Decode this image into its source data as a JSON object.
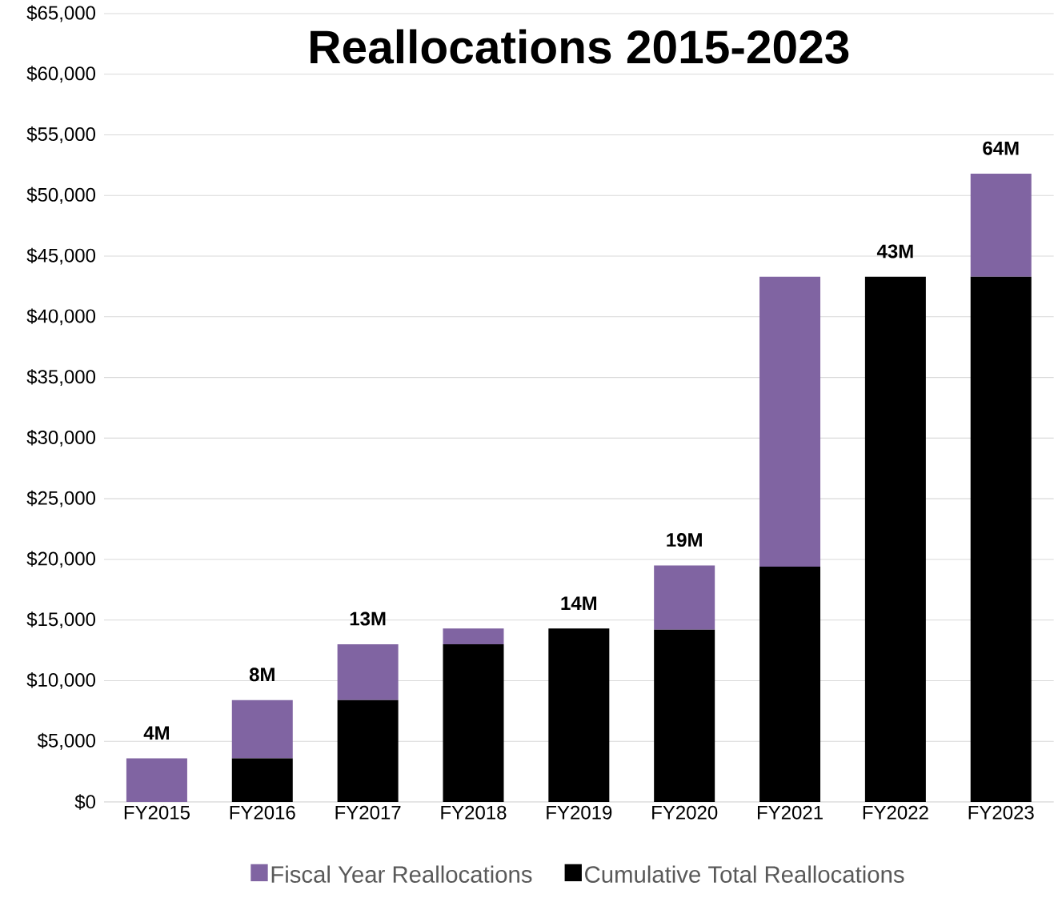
{
  "chart_data": {
    "type": "bar",
    "title": "Reallocations 2015-2023",
    "categories": [
      "FY2015",
      "FY2016",
      "FY2017",
      "FY2018",
      "FY2019",
      "FY2020",
      "FY2021",
      "FY2022",
      "FY2023"
    ],
    "series": [
      {
        "name": "Cumulative Total Reallocations",
        "color": "#000000",
        "values": [
          0,
          3600,
          8400,
          13000,
          14300,
          14200,
          19400,
          43300,
          43300
        ]
      },
      {
        "name": "Fiscal Year Reallocations",
        "color": "#8064a2",
        "values": [
          3600,
          4800,
          4600,
          1300,
          0,
          5300,
          23900,
          0,
          8500
        ]
      }
    ],
    "stacked": true,
    "ylim": [
      0,
      65000
    ],
    "yticks": [
      {
        "value": 0,
        "label": "$0"
      },
      {
        "value": 5000,
        "label": "$5,000"
      },
      {
        "value": 10000,
        "label": "$10,000"
      },
      {
        "value": 15000,
        "label": "$15,000"
      },
      {
        "value": 20000,
        "label": "$20,000"
      },
      {
        "value": 25000,
        "label": "$25,000"
      },
      {
        "value": 30000,
        "label": "$30,000"
      },
      {
        "value": 35000,
        "label": "$35,000"
      },
      {
        "value": 40000,
        "label": "$40,000"
      },
      {
        "value": 45000,
        "label": "$45,000"
      },
      {
        "value": 50000,
        "label": "$50,000"
      },
      {
        "value": 55000,
        "label": "$55,000"
      },
      {
        "value": 60000,
        "label": "$60,000"
      },
      {
        "value": 65000,
        "label": "$65,000"
      }
    ],
    "grid": "y",
    "legend": "bottom",
    "annotations": [
      {
        "text": "4M",
        "x": "FY2015",
        "y": 3600
      },
      {
        "text": "8M",
        "x": "FY2016",
        "y": 8400
      },
      {
        "text": "13M",
        "x": "FY2017",
        "y": 13000
      },
      {
        "text": "14M",
        "x": "FY2019",
        "y": 14300
      },
      {
        "text": "19M",
        "x": "FY2020",
        "y": 19500
      },
      {
        "text": "43M",
        "x": "FY2022",
        "y": 43300
      },
      {
        "text": "64M",
        "x": "FY2023",
        "y": 51800
      }
    ]
  }
}
